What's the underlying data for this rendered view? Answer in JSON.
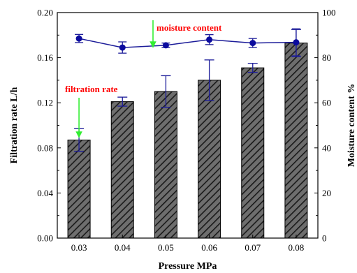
{
  "chart_data": {
    "type": "bar",
    "categories": [
      "0.03",
      "0.04",
      "0.05",
      "0.06",
      "0.07",
      "0.08"
    ],
    "xlabel": "Pressure MPa",
    "ylabel_left": "Filtration rate L/h",
    "ylabel_right": "Moisture content %",
    "ylim_left": [
      0.0,
      0.2
    ],
    "ylim_right": [
      0,
      100
    ],
    "yticks_left": [
      "0.00",
      "0.04",
      "0.08",
      "0.12",
      "0.16",
      "0.20"
    ],
    "yticks_right": [
      "0",
      "20",
      "40",
      "60",
      "80",
      "100"
    ],
    "grid": false,
    "series": [
      {
        "name": "filtration rate",
        "kind": "bar",
        "axis": "left",
        "values": [
          0.087,
          0.121,
          0.13,
          0.14,
          0.151,
          0.173
        ],
        "error": [
          0.01,
          0.004,
          0.014,
          0.018,
          0.004,
          0.012
        ]
      },
      {
        "name": "moisture content",
        "kind": "line",
        "axis": "right",
        "values": [
          88.5,
          84.5,
          85.5,
          88.0,
          86.5,
          86.8
        ],
        "error": [
          1.8,
          2.5,
          1.0,
          2.2,
          2.0,
          6.0
        ]
      }
    ],
    "annotations": [
      {
        "text": "filtration rate",
        "target_series": "filtration rate",
        "target_index": 0,
        "color": "#ff0000",
        "arrow_color": "#33ee33"
      },
      {
        "text": "moisture content",
        "target_series": "moisture content",
        "target_index": 2,
        "color": "#ff0000",
        "arrow_color": "#33ee33"
      }
    ],
    "colors": {
      "bar_fill": "#6e6e6e",
      "bar_hatch": "#1a1a1a",
      "line": "#1c1c99",
      "marker": "#0b0b9e"
    }
  }
}
